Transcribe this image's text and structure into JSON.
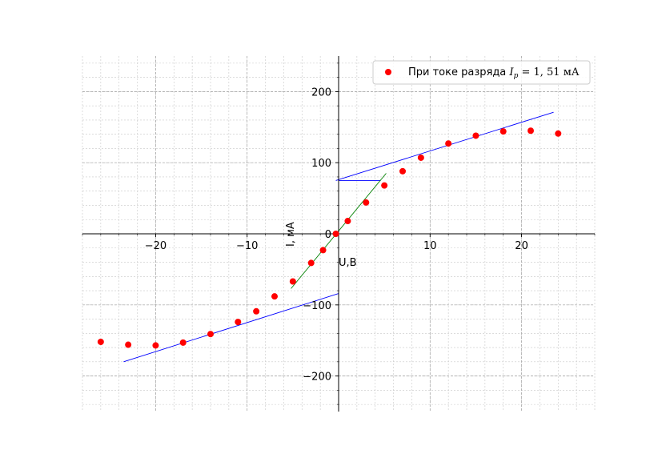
{
  "chart_data": {
    "type": "scatter",
    "title": "",
    "xlabel": "U,B",
    "ylabel": "I, мА",
    "xlim": [
      -28,
      28
    ],
    "ylim": [
      -250,
      250
    ],
    "grid": true,
    "x_major_ticks": [
      -20,
      -10,
      0,
      10,
      20
    ],
    "y_major_ticks": [
      -200,
      -100,
      0,
      100,
      200
    ],
    "x_tick_labels": [
      "−20",
      "−10",
      "0",
      "10",
      "20"
    ],
    "y_tick_labels": [
      "−200",
      "−100",
      "0",
      "100",
      "200"
    ],
    "legend": {
      "placement": "top-right",
      "label_prefix": "При токе разряда ",
      "label_symbol": "I",
      "label_subscript": "p",
      "label_suffix": " = 1, 51 мА"
    },
    "series": [
      {
        "kind": "scatter",
        "color": "#ff0000",
        "points": [
          [
            -26,
            -152
          ],
          [
            -23,
            -156
          ],
          [
            -20,
            -157
          ],
          [
            -17,
            -153
          ],
          [
            -14,
            -141
          ],
          [
            -11,
            -124
          ],
          [
            -9,
            -109
          ],
          [
            -7,
            -88
          ],
          [
            -5,
            -67
          ],
          [
            -3,
            -41
          ],
          [
            -1.7,
            -23
          ],
          [
            -0.3,
            0
          ],
          [
            1,
            18
          ],
          [
            3,
            44
          ],
          [
            5,
            68
          ],
          [
            7,
            88
          ],
          [
            9,
            107
          ],
          [
            12,
            127
          ],
          [
            15,
            138
          ],
          [
            18,
            144
          ],
          [
            21,
            145
          ],
          [
            24,
            141
          ]
        ]
      }
    ],
    "lines": [
      {
        "color": "#0000ff",
        "points": [
          [
            -0.3,
            75
          ],
          [
            23.5,
            171
          ]
        ]
      },
      {
        "color": "#0000ff",
        "points": [
          [
            -23.5,
            -180
          ],
          [
            0,
            -84
          ]
        ]
      },
      {
        "color": "#0000ff",
        "points": [
          [
            0,
            75
          ],
          [
            4.6,
            75
          ]
        ]
      },
      {
        "color": "#008000",
        "points": [
          [
            -5.2,
            -77
          ],
          [
            5.2,
            85
          ]
        ]
      }
    ]
  }
}
